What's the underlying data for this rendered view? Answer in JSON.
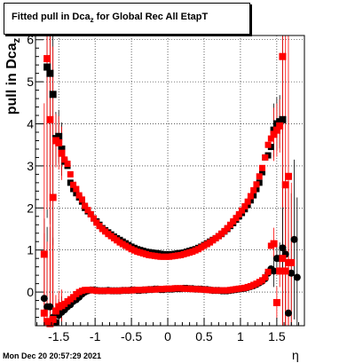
{
  "title": {
    "main": "Fitted pull in Dca",
    "sub": "z",
    "rest": " for Global Rec All EtapT"
  },
  "ylabel": {
    "main": "pull in Dca",
    "sub": "z"
  },
  "xlabel": "η",
  "datestamp": "Mon Dec 20 20:57:29 2021",
  "colors": {
    "series_black": "#000000",
    "series_red": "#ff0000",
    "grid": "#000000",
    "frame": "#000000"
  },
  "chart_data": {
    "type": "scatter",
    "grid": true,
    "xlim": [
      -1.82,
      1.88
    ],
    "ylim": [
      -0.8,
      6.1
    ],
    "xticks": [
      -1.5,
      -1,
      -0.5,
      0,
      0.5,
      1,
      1.5
    ],
    "xtick_labels": [
      "-1.5",
      "-1",
      "-0.5",
      "0",
      "0.5",
      "1",
      "1.5"
    ],
    "yticks": [
      0,
      1,
      2,
      3,
      4,
      5,
      6
    ],
    "ytick_labels": [
      "0",
      "1",
      "2",
      "3",
      "4",
      "5",
      "6"
    ],
    "series": [
      {
        "color": "black",
        "role": "mean",
        "x": [
          -1.7,
          -1.66,
          -1.62,
          -1.58,
          -1.54,
          -1.5,
          -1.46,
          -1.42,
          -1.38,
          -1.34,
          -1.3,
          -1.26,
          -1.22,
          -1.18,
          -1.14,
          -1.1,
          -1.06,
          -1.02,
          -0.98,
          -0.94,
          -0.9,
          -0.86,
          -0.82,
          -0.78,
          -0.74,
          -0.7,
          -0.66,
          -0.62,
          -0.58,
          -0.54,
          -0.5,
          -0.46,
          -0.42,
          -0.38,
          -0.34,
          -0.3,
          -0.26,
          -0.22,
          -0.18,
          -0.14,
          -0.1,
          -0.06,
          -0.02,
          0.02,
          0.06,
          0.1,
          0.14,
          0.18,
          0.22,
          0.26,
          0.3,
          0.34,
          0.38,
          0.42,
          0.46,
          0.5,
          0.54,
          0.58,
          0.62,
          0.66,
          0.7,
          0.74,
          0.78,
          0.82,
          0.86,
          0.9,
          0.94,
          0.98,
          1.02,
          1.06,
          1.1,
          1.14,
          1.18,
          1.22,
          1.26,
          1.3,
          1.34,
          1.38,
          1.42,
          1.46,
          1.5,
          1.54,
          1.58,
          1.62,
          1.66,
          1.7,
          1.74,
          1.78
        ],
        "y": [
          -0.15,
          -0.35,
          -0.35,
          -0.6,
          -0.72,
          -0.55,
          -0.48,
          -0.42,
          -0.35,
          -0.3,
          -0.22,
          -0.18,
          -0.12,
          -0.05,
          0.0,
          0.03,
          0.05,
          0.05,
          0.04,
          0.03,
          0.03,
          0.03,
          0.04,
          0.03,
          0.03,
          0.03,
          0.03,
          0.04,
          0.04,
          0.04,
          0.05,
          0.05,
          0.04,
          0.04,
          0.05,
          0.05,
          0.06,
          0.06,
          0.07,
          0.07,
          0.06,
          0.06,
          0.07,
          0.07,
          0.07,
          0.08,
          0.08,
          0.08,
          0.09,
          0.09,
          0.08,
          0.08,
          0.07,
          0.07,
          0.07,
          0.06,
          0.06,
          0.05,
          0.04,
          0.04,
          0.04,
          0.03,
          0.03,
          0.03,
          0.04,
          0.05,
          0.06,
          0.07,
          0.08,
          0.09,
          0.11,
          0.13,
          0.15,
          0.18,
          0.22,
          0.26,
          0.32,
          0.45,
          0.55,
          0.5,
          0.8,
          0.8,
          1.05,
          0.9,
          -0.5,
          0.45,
          1.25,
          0.35
        ]
      },
      {
        "color": "red",
        "role": "mean",
        "x": [
          -1.7,
          -1.66,
          -1.62,
          -1.58,
          -1.54,
          -1.5,
          -1.46,
          -1.42,
          -1.38,
          -1.34,
          -1.3,
          -1.26,
          -1.22,
          -1.18,
          -1.14,
          -1.1,
          -1.06,
          -1.02,
          -0.98,
          -0.94,
          -0.9,
          -0.86,
          -0.82,
          -0.78,
          -0.74,
          -0.7,
          -0.66,
          -0.62,
          -0.58,
          -0.54,
          -0.5,
          -0.46,
          -0.42,
          -0.38,
          -0.34,
          -0.3,
          -0.26,
          -0.22,
          -0.18,
          -0.14,
          -0.1,
          -0.06,
          -0.02,
          0.02,
          0.06,
          0.1,
          0.14,
          0.18,
          0.22,
          0.26,
          0.3,
          0.34,
          0.38,
          0.42,
          0.46,
          0.5,
          0.54,
          0.58,
          0.62,
          0.66,
          0.7,
          0.74,
          0.78,
          0.82,
          0.86,
          0.9,
          0.94,
          0.98,
          1.02,
          1.06,
          1.1,
          1.14,
          1.18,
          1.22,
          1.26,
          1.3,
          1.34,
          1.38,
          1.42,
          1.46,
          1.5,
          1.54,
          1.58,
          1.62,
          1.66,
          1.7
        ],
        "y": [
          -0.5,
          -0.7,
          -0.75,
          -0.65,
          -0.45,
          -0.35,
          -0.32,
          -0.28,
          -0.22,
          -0.17,
          -0.12,
          -0.05,
          0.0,
          0.03,
          0.05,
          0.05,
          0.05,
          0.04,
          0.03,
          0.03,
          0.03,
          0.03,
          0.03,
          0.03,
          0.03,
          0.03,
          0.03,
          0.04,
          0.04,
          0.04,
          0.04,
          0.05,
          0.05,
          0.05,
          0.05,
          0.06,
          0.06,
          0.06,
          0.06,
          0.07,
          0.07,
          0.07,
          0.08,
          0.08,
          0.08,
          0.09,
          0.09,
          0.09,
          0.08,
          0.08,
          0.08,
          0.07,
          0.07,
          0.07,
          0.06,
          0.06,
          0.05,
          0.05,
          0.04,
          0.04,
          0.04,
          0.04,
          0.04,
          0.04,
          0.05,
          0.06,
          0.07,
          0.08,
          0.09,
          0.1,
          0.12,
          0.14,
          0.17,
          0.2,
          0.24,
          0.28,
          0.35,
          0.48,
          1.1,
          1.15,
          -0.25,
          0.5,
          0.8,
          0.5,
          0.7,
          0.7
        ]
      },
      {
        "color": "black",
        "role": "width",
        "x": [
          -1.66,
          -1.62,
          -1.58,
          -1.54,
          -1.5,
          -1.46,
          -1.42,
          -1.38,
          -1.34,
          -1.3,
          -1.26,
          -1.22,
          -1.18,
          -1.14,
          -1.1,
          -1.06,
          -1.02,
          -0.98,
          -0.94,
          -0.9,
          -0.86,
          -0.82,
          -0.78,
          -0.74,
          -0.7,
          -0.66,
          -0.62,
          -0.58,
          -0.54,
          -0.5,
          -0.46,
          -0.42,
          -0.38,
          -0.34,
          -0.3,
          -0.26,
          -0.22,
          -0.18,
          -0.14,
          -0.1,
          -0.06,
          -0.02,
          0.02,
          0.06,
          0.1,
          0.14,
          0.18,
          0.22,
          0.26,
          0.3,
          0.34,
          0.38,
          0.42,
          0.46,
          0.5,
          0.54,
          0.58,
          0.62,
          0.66,
          0.7,
          0.74,
          0.78,
          0.82,
          0.86,
          0.9,
          0.94,
          0.98,
          1.02,
          1.06,
          1.1,
          1.14,
          1.18,
          1.22,
          1.26,
          1.3,
          1.34,
          1.38,
          1.42,
          1.46,
          1.5,
          1.54,
          1.58
        ],
        "y": [
          5.35,
          5.2,
          4.7,
          3.65,
          3.7,
          3.4,
          3.1,
          3.0,
          2.6,
          2.45,
          2.35,
          2.25,
          2.15,
          2.0,
          1.92,
          1.85,
          1.75,
          1.68,
          1.6,
          1.52,
          1.47,
          1.42,
          1.37,
          1.32,
          1.28,
          1.24,
          1.2,
          1.16,
          1.12,
          1.08,
          1.05,
          1.02,
          1.0,
          0.98,
          0.96,
          0.95,
          0.94,
          0.93,
          0.92,
          0.91,
          0.9,
          0.9,
          0.9,
          0.9,
          0.91,
          0.92,
          0.93,
          0.94,
          0.96,
          0.98,
          1.0,
          1.02,
          1.05,
          1.08,
          1.12,
          1.16,
          1.2,
          1.24,
          1.28,
          1.33,
          1.38,
          1.44,
          1.5,
          1.57,
          1.64,
          1.72,
          1.8,
          1.88,
          1.97,
          2.07,
          2.18,
          2.3,
          2.45,
          2.6,
          2.85,
          3.2,
          3.25,
          3.45,
          3.85,
          4.0,
          4.05,
          4.1
        ]
      },
      {
        "color": "red",
        "role": "width",
        "x": [
          -1.7,
          -1.66,
          -1.62,
          -1.58,
          -1.54,
          -1.5,
          -1.46,
          -1.42,
          -1.38,
          -1.34,
          -1.3,
          -1.26,
          -1.22,
          -1.18,
          -1.14,
          -1.1,
          -1.06,
          -1.02,
          -0.98,
          -0.94,
          -0.9,
          -0.86,
          -0.82,
          -0.78,
          -0.74,
          -0.7,
          -0.66,
          -0.62,
          -0.58,
          -0.54,
          -0.5,
          -0.46,
          -0.42,
          -0.38,
          -0.34,
          -0.3,
          -0.26,
          -0.22,
          -0.18,
          -0.14,
          -0.1,
          -0.06,
          -0.02,
          0.02,
          0.06,
          0.1,
          0.14,
          0.18,
          0.22,
          0.26,
          0.3,
          0.34,
          0.38,
          0.42,
          0.46,
          0.5,
          0.54,
          0.58,
          0.62,
          0.66,
          0.7,
          0.74,
          0.78,
          0.82,
          0.86,
          0.9,
          0.94,
          0.98,
          1.02,
          1.06,
          1.1,
          1.14,
          1.18,
          1.22,
          1.26,
          1.3,
          1.34,
          1.38,
          1.42,
          1.46,
          1.5,
          1.54,
          1.58,
          1.62,
          1.66
        ],
        "y": [
          0.9,
          5.55,
          4.1,
          2.25,
          3.6,
          3.55,
          3.3,
          3.15,
          3.05,
          2.8,
          2.55,
          2.45,
          2.3,
          2.2,
          2.05,
          1.95,
          1.85,
          1.75,
          1.65,
          1.57,
          1.5,
          1.44,
          1.38,
          1.33,
          1.28,
          1.23,
          1.18,
          1.14,
          1.1,
          1.06,
          1.02,
          0.99,
          0.96,
          0.94,
          0.92,
          0.9,
          0.88,
          0.87,
          0.86,
          0.85,
          0.84,
          0.84,
          0.84,
          0.84,
          0.85,
          0.86,
          0.87,
          0.88,
          0.9,
          0.92,
          0.94,
          0.96,
          0.99,
          1.02,
          1.06,
          1.1,
          1.14,
          1.18,
          1.23,
          1.28,
          1.33,
          1.39,
          1.45,
          1.52,
          1.6,
          1.68,
          1.76,
          1.85,
          1.94,
          2.04,
          2.15,
          2.28,
          2.42,
          2.56,
          2.75,
          2.95,
          3.2,
          3.5,
          3.65,
          3.75,
          3.85,
          3.95,
          5.6,
          2.55,
          2.75
        ]
      }
    ]
  }
}
